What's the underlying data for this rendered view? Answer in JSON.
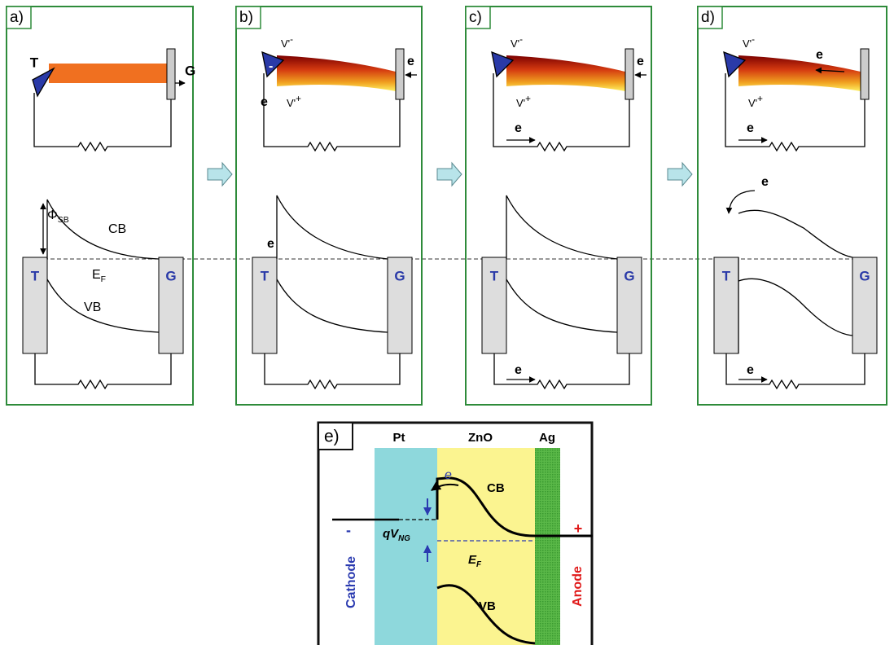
{
  "panels": [
    {
      "label": "a)",
      "tip": "T",
      "ground": "G",
      "barrier": {
        "main": "Φ",
        "sub": "SB"
      },
      "cb": "CB",
      "ef": {
        "main": "E",
        "sub": "F"
      },
      "vb": "VB",
      "left": "T",
      "right": "G"
    },
    {
      "label": "b)",
      "v_top": {
        "main": "V'",
        "sup": "-"
      },
      "v_bottom": {
        "main": "V'",
        "sup": "+"
      },
      "tip_sign": "-",
      "tip_e": "e",
      "ground_e": "e",
      "band_e": "e",
      "left": "T",
      "right": "G"
    },
    {
      "label": "c)",
      "v_top": {
        "main": "V'",
        "sup": "-"
      },
      "v_bottom": {
        "main": "V'",
        "sup": "+"
      },
      "ground_e": "e",
      "circuit_e": "e",
      "left": "T",
      "right": "G",
      "bottom_e": "e"
    },
    {
      "label": "d)",
      "v_top": {
        "main": "V'",
        "sup": "-"
      },
      "v_bottom": {
        "main": "V'",
        "sup": "+"
      },
      "wire_e": "e",
      "circuit_e": "e",
      "band_e": "e",
      "left": "T",
      "right": "G",
      "bottom_e": "e"
    }
  ],
  "panel_e": {
    "label": "e)",
    "pt": "Pt",
    "zno": "ZnO",
    "ag": "Ag",
    "e": "e",
    "cb": "CB",
    "qv": {
      "main": "qV",
      "sub": "NG"
    },
    "ef": {
      "main": "E",
      "sub": "F"
    },
    "vb": "VB",
    "cathode": "Cathode",
    "minus": "-",
    "anode": "Anode",
    "plus": "+"
  }
}
